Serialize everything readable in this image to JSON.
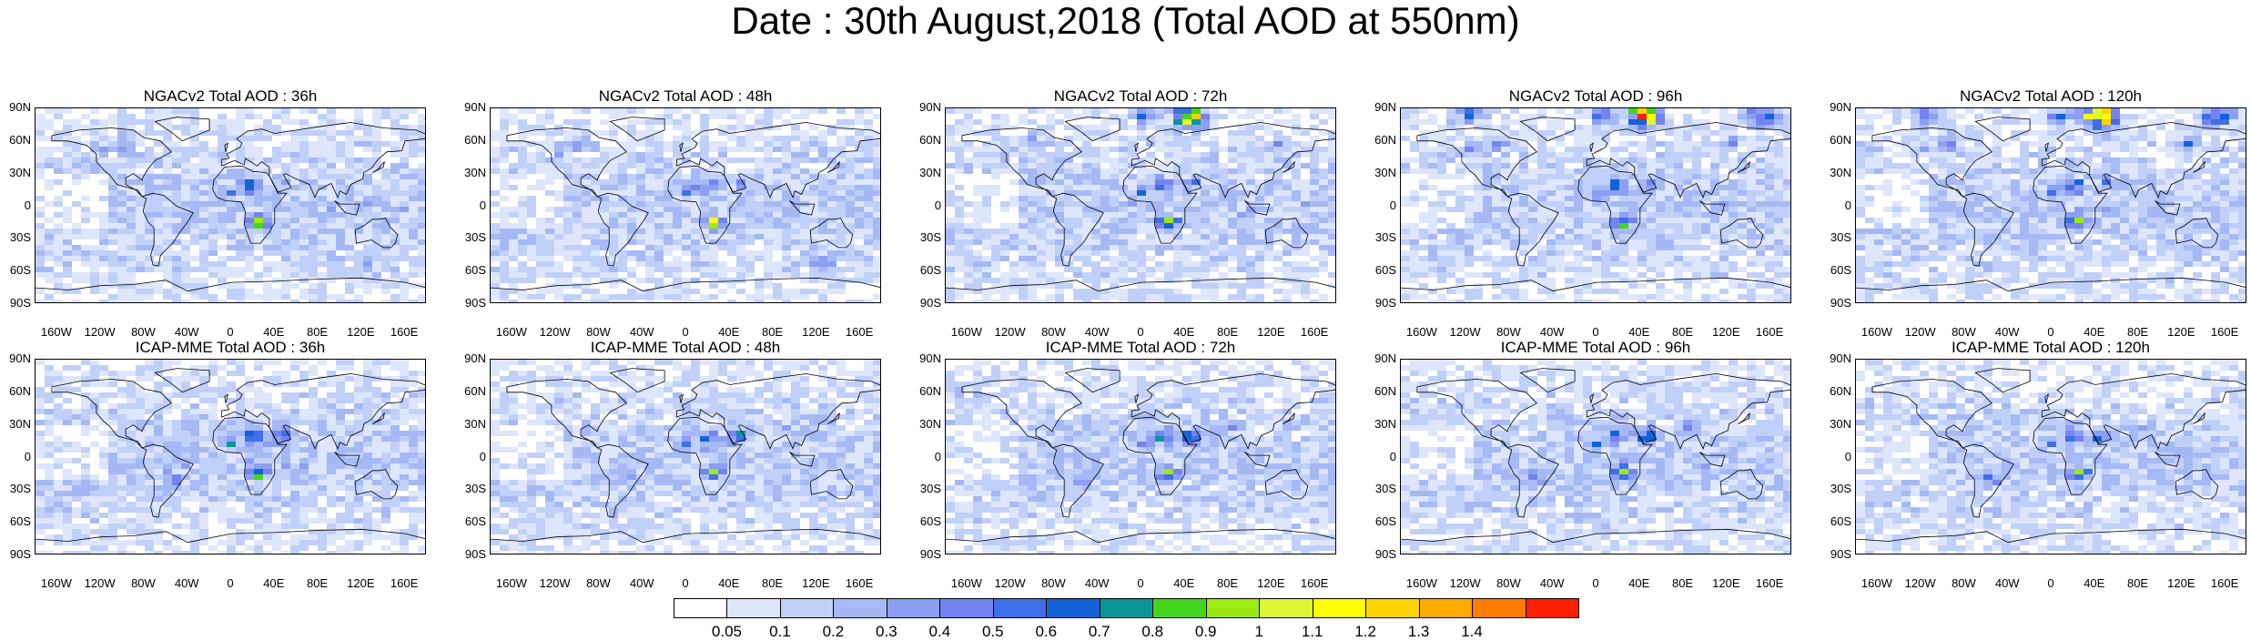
{
  "title": "Date : 30th August,2018 (Total AOD at 550nm)",
  "latitude_ticks": [
    "90N",
    "60N",
    "30N",
    "0",
    "30S",
    "60S",
    "90S"
  ],
  "longitude_ticks": [
    "160W",
    "120W",
    "80W",
    "40W",
    "0",
    "40E",
    "80E",
    "120E",
    "160E"
  ],
  "panels": [
    {
      "title": "NGACv2 Total AOD : 36h",
      "model": "NGACv2",
      "forecast_hour": 36
    },
    {
      "title": "NGACv2 Total AOD : 48h",
      "model": "NGACv2",
      "forecast_hour": 48
    },
    {
      "title": "NGACv2 Total AOD : 72h",
      "model": "NGACv2",
      "forecast_hour": 72
    },
    {
      "title": "NGACv2 Total AOD : 96h",
      "model": "NGACv2",
      "forecast_hour": 96
    },
    {
      "title": "NGACv2 Total AOD : 120h",
      "model": "NGACv2",
      "forecast_hour": 120
    },
    {
      "title": "ICAP-MME Total AOD : 36h",
      "model": "ICAP-MME",
      "forecast_hour": 36
    },
    {
      "title": "ICAP-MME Total AOD : 48h",
      "model": "ICAP-MME",
      "forecast_hour": 48
    },
    {
      "title": "ICAP-MME Total AOD : 72h",
      "model": "ICAP-MME",
      "forecast_hour": 72
    },
    {
      "title": "ICAP-MME Total AOD : 96h",
      "model": "ICAP-MME",
      "forecast_hour": 96
    },
    {
      "title": "ICAP-MME Total AOD : 120h",
      "model": "ICAP-MME",
      "forecast_hour": 120
    }
  ],
  "colorbar": {
    "labels": [
      "0.05",
      "0.1",
      "0.2",
      "0.3",
      "0.4",
      "0.5",
      "0.6",
      "0.7",
      "0.8",
      "0.9",
      "1",
      "1.1",
      "1.2",
      "1.3",
      "1.4"
    ],
    "colors": [
      "#ffffff",
      "#dde6fb",
      "#c0d0f8",
      "#a6b9f5",
      "#8c9ff3",
      "#7583f0",
      "#3f6fe6",
      "#1462d8",
      "#0a9696",
      "#44d61e",
      "#9cea12",
      "#dcf733",
      "#ffff00",
      "#ffd400",
      "#ffaa00",
      "#ff7d00",
      "#ff2000"
    ]
  }
}
